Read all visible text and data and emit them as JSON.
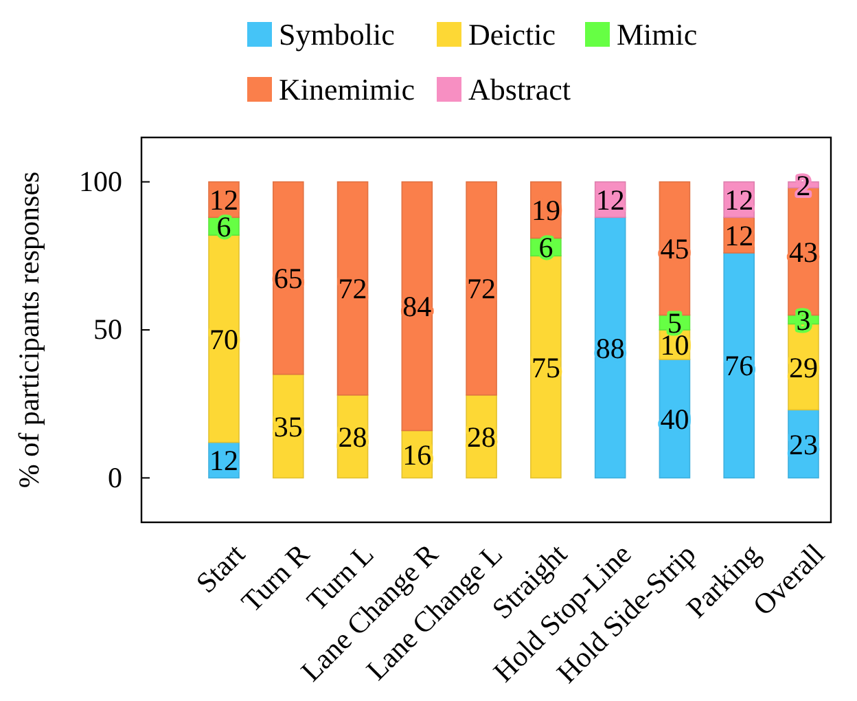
{
  "chart_data": {
    "type": "bar",
    "stacked": true,
    "ylabel": "% of participants responses",
    "categories": [
      "Start",
      "Turn R",
      "Turn L",
      "Lane Change R",
      "Lane Change L",
      "Straight",
      "Hold Stop-Line",
      "Hold Side-Strip",
      "Parking",
      "Overall"
    ],
    "series": [
      {
        "name": "Symbolic",
        "color": "#45c4f7",
        "values": [
          12,
          0,
          0,
          0,
          0,
          0,
          88,
          40,
          76,
          23
        ],
        "value_labels": [
          "12",
          null,
          null,
          null,
          null,
          null,
          "88",
          "40",
          "76",
          "23"
        ]
      },
      {
        "name": "Deictic",
        "color": "#fdd835",
        "values": [
          70,
          35,
          28,
          16,
          28,
          75,
          0,
          10,
          0,
          29
        ],
        "value_labels": [
          "70",
          "35",
          "28",
          "16",
          "28",
          "75",
          null,
          "10",
          null,
          "29"
        ]
      },
      {
        "name": "Mimic",
        "color": "#66ff44",
        "values": [
          6,
          0,
          0,
          0,
          0,
          6,
          0,
          5,
          0,
          3
        ],
        "value_labels": [
          "6",
          null,
          null,
          null,
          null,
          "6",
          null,
          "5",
          null,
          "3"
        ]
      },
      {
        "name": "Kinemimic",
        "color": "#fa7f4b",
        "values": [
          12,
          65,
          72,
          84,
          72,
          19,
          0,
          45,
          12,
          43
        ],
        "value_labels": [
          "12",
          "65",
          "72",
          "84",
          "72",
          "19",
          null,
          "45",
          "12",
          "43"
        ]
      },
      {
        "name": "Abstract",
        "color": "#f78fc2",
        "values": [
          0,
          0,
          0,
          0,
          0,
          0,
          12,
          0,
          12,
          2
        ],
        "value_labels": [
          null,
          null,
          null,
          null,
          null,
          null,
          "12",
          null,
          "12",
          "2"
        ]
      }
    ],
    "ylim": [
      -15,
      115
    ],
    "yticks": [
      0,
      50,
      100
    ],
    "legend": "top"
  }
}
